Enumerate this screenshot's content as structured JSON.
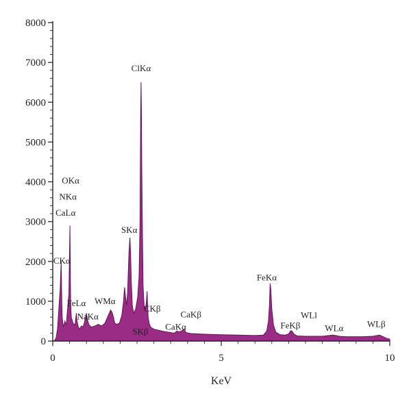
{
  "chart_data": {
    "type": "area",
    "title": "",
    "xlabel": "KeV",
    "ylabel": "",
    "xlim": [
      0,
      10
    ],
    "ylim": [
      0,
      8000
    ],
    "x_ticks": [
      "0",
      "5",
      "10"
    ],
    "y_ticks": [
      "0",
      "1000",
      "2000",
      "3000",
      "4000",
      "5000",
      "6000",
      "7000",
      "8000"
    ],
    "fill_color": "#9b2c86",
    "edge_color": "#6a0f5c",
    "spectrum": {
      "x": [
        0.0,
        0.05,
        0.1,
        0.14,
        0.18,
        0.22,
        0.25,
        0.27,
        0.28,
        0.3,
        0.32,
        0.36,
        0.4,
        0.44,
        0.48,
        0.51,
        0.52,
        0.53,
        0.55,
        0.6,
        0.66,
        0.7,
        0.72,
        0.76,
        0.8,
        0.85,
        0.9,
        0.95,
        1.0,
        1.04,
        1.08,
        1.15,
        1.25,
        1.35,
        1.45,
        1.55,
        1.65,
        1.72,
        1.77,
        1.8,
        1.84,
        1.9,
        1.98,
        2.05,
        2.1,
        2.13,
        2.16,
        2.19,
        2.22,
        2.26,
        2.29,
        2.31,
        2.33,
        2.36,
        2.4,
        2.46,
        2.52,
        2.56,
        2.59,
        2.61,
        2.62,
        2.63,
        2.64,
        2.66,
        2.68,
        2.71,
        2.75,
        2.78,
        2.8,
        2.81,
        2.83,
        2.86,
        2.9,
        3.0,
        3.1,
        3.2,
        3.3,
        3.45,
        3.6,
        3.69,
        3.75,
        3.82,
        3.9,
        3.95,
        4.02,
        4.1,
        4.3,
        4.6,
        5.0,
        5.5,
        6.0,
        6.25,
        6.35,
        6.4,
        6.43,
        6.45,
        6.47,
        6.5,
        6.55,
        6.62,
        6.75,
        6.9,
        7.0,
        7.06,
        7.1,
        7.15,
        7.25,
        7.5,
        8.0,
        8.3,
        8.4,
        8.5,
        8.7,
        9.2,
        9.5,
        9.62,
        9.7,
        9.78,
        9.9,
        10.0
      ],
      "y": [
        0,
        10,
        80,
        300,
        800,
        1300,
        2000,
        900,
        600,
        450,
        350,
        500,
        400,
        800,
        1200,
        2900,
        1800,
        1000,
        600,
        450,
        400,
        700,
        500,
        350,
        300,
        380,
        350,
        500,
        700,
        500,
        400,
        350,
        380,
        420,
        380,
        450,
        650,
        780,
        700,
        600,
        450,
        420,
        450,
        650,
        1000,
        1350,
        1100,
        900,
        1200,
        2200,
        2600,
        2200,
        1500,
        900,
        700,
        800,
        1100,
        1600,
        3000,
        5800,
        6500,
        5800,
        4500,
        2800,
        1400,
        900,
        800,
        1000,
        1250,
        1000,
        600,
        450,
        350,
        300,
        280,
        260,
        240,
        220,
        200,
        250,
        230,
        250,
        300,
        220,
        200,
        190,
        180,
        170,
        160,
        150,
        140,
        150,
        250,
        500,
        900,
        1450,
        1300,
        800,
        400,
        220,
        160,
        150,
        180,
        260,
        250,
        180,
        130,
        120,
        120,
        150,
        140,
        120,
        110,
        110,
        120,
        140,
        150,
        120,
        70,
        50
      ]
    },
    "annotations": [
      {
        "text": "ClKα",
        "x": 2.62,
        "y": 6780
      },
      {
        "text": "OKα",
        "x": 0.53,
        "y": 3960
      },
      {
        "text": "NKα",
        "x": 0.45,
        "y": 3550
      },
      {
        "text": "CaLα",
        "x": 0.38,
        "y": 3150
      },
      {
        "text": "SKα",
        "x": 2.27,
        "y": 2720
      },
      {
        "text": "CKα",
        "x": 0.27,
        "y": 1940
      },
      {
        "text": "FeLα",
        "x": 0.7,
        "y": 880
      },
      {
        "text": "NaKα",
        "x": 1.04,
        "y": 540
      },
      {
        "text": "WMα",
        "x": 1.55,
        "y": 930
      },
      {
        "text": "CKβ",
        "x": 2.95,
        "y": 740
      },
      {
        "text": "SKβ",
        "x": 2.6,
        "y": 160
      },
      {
        "text": "CaKα",
        "x": 3.65,
        "y": 280
      },
      {
        "text": "CaKβ",
        "x": 4.1,
        "y": 590
      },
      {
        "text": "FeKα",
        "x": 6.35,
        "y": 1520
      },
      {
        "text": "FeKβ",
        "x": 7.05,
        "y": 320
      },
      {
        "text": "WLl",
        "x": 7.6,
        "y": 580
      },
      {
        "text": "WLα",
        "x": 8.35,
        "y": 250
      },
      {
        "text": "WLβ",
        "x": 9.6,
        "y": 350
      }
    ]
  }
}
